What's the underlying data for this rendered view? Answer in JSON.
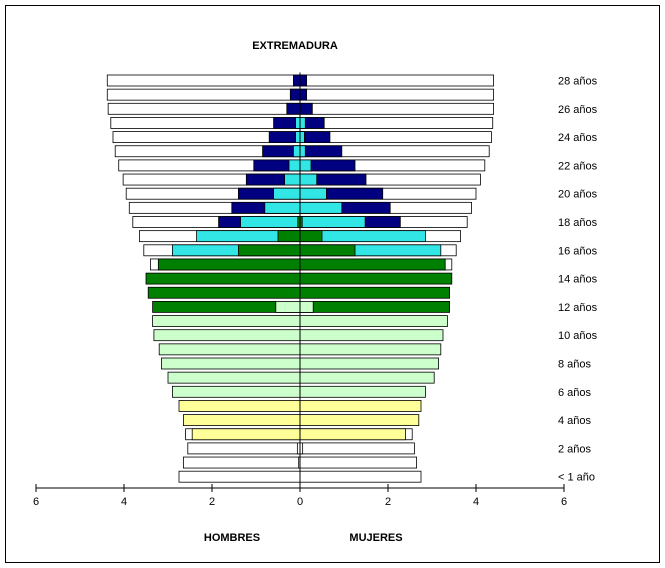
{
  "chart_data": {
    "type": "bar",
    "title": "EXTREMADURA",
    "xlabel_left": "HOMBRES",
    "xlabel_right": "MUJERES",
    "x_ticks": [
      "6",
      "4",
      "2",
      "0",
      "2",
      "4",
      "6"
    ],
    "xlim": [
      -6,
      6
    ],
    "colors": {
      "white": "#FFFFFF",
      "navy": "#000080",
      "cyan": "#33E6E6",
      "darkgreen": "#008000",
      "lightgreen": "#CCFFCC",
      "yellow": "#FFFF99",
      "outline": "#000000"
    },
    "y_labels": [
      {
        "age": 28,
        "label": "28 años"
      },
      {
        "age": 26,
        "label": "26 años"
      },
      {
        "age": 24,
        "label": "24 años"
      },
      {
        "age": 22,
        "label": "22 años"
      },
      {
        "age": 20,
        "label": "20 años"
      },
      {
        "age": 18,
        "label": "18 años"
      },
      {
        "age": 16,
        "label": "16 años"
      },
      {
        "age": 14,
        "label": "14 años"
      },
      {
        "age": 12,
        "label": "12 años"
      },
      {
        "age": 10,
        "label": "10 años"
      },
      {
        "age": 8,
        "label": "8 años"
      },
      {
        "age": 6,
        "label": "6 años"
      },
      {
        "age": 4,
        "label": "4 años"
      },
      {
        "age": 2,
        "label": "2 años"
      },
      {
        "age": 0,
        "label": "< 1 año"
      }
    ],
    "rows": [
      {
        "age": 28,
        "men": [
          {
            "v": 4.38,
            "c": "white"
          },
          {
            "v": 0.15,
            "c": "navy"
          }
        ],
        "women": [
          {
            "v": 4.4,
            "c": "white"
          },
          {
            "v": 0.15,
            "c": "navy"
          }
        ]
      },
      {
        "age": 27,
        "men": [
          {
            "v": 4.38,
            "c": "white"
          },
          {
            "v": 0.22,
            "c": "navy"
          }
        ],
        "women": [
          {
            "v": 4.4,
            "c": "white"
          },
          {
            "v": 0.15,
            "c": "navy"
          }
        ]
      },
      {
        "age": 26,
        "men": [
          {
            "v": 4.36,
            "c": "white"
          },
          {
            "v": 0.3,
            "c": "navy"
          }
        ],
        "women": [
          {
            "v": 4.4,
            "c": "white"
          },
          {
            "v": 0.28,
            "c": "navy"
          }
        ]
      },
      {
        "age": 25,
        "men": [
          {
            "v": 4.3,
            "c": "white"
          },
          {
            "v": 0.6,
            "c": "navy"
          },
          {
            "v": 0.1,
            "c": "cyan"
          }
        ],
        "women": [
          {
            "v": 4.38,
            "c": "white"
          },
          {
            "v": 0.55,
            "c": "navy"
          },
          {
            "v": 0.12,
            "c": "cyan"
          }
        ]
      },
      {
        "age": 24,
        "men": [
          {
            "v": 4.25,
            "c": "white"
          },
          {
            "v": 0.7,
            "c": "navy"
          },
          {
            "v": 0.1,
            "c": "cyan"
          }
        ],
        "women": [
          {
            "v": 4.35,
            "c": "white"
          },
          {
            "v": 0.68,
            "c": "navy"
          },
          {
            "v": 0.1,
            "c": "cyan"
          }
        ]
      },
      {
        "age": 23,
        "men": [
          {
            "v": 4.2,
            "c": "white"
          },
          {
            "v": 0.85,
            "c": "navy"
          },
          {
            "v": 0.15,
            "c": "cyan"
          }
        ],
        "women": [
          {
            "v": 4.3,
            "c": "white"
          },
          {
            "v": 0.95,
            "c": "navy"
          },
          {
            "v": 0.12,
            "c": "cyan"
          }
        ]
      },
      {
        "age": 22,
        "men": [
          {
            "v": 4.12,
            "c": "white"
          },
          {
            "v": 1.05,
            "c": "navy"
          },
          {
            "v": 0.25,
            "c": "cyan"
          }
        ],
        "women": [
          {
            "v": 4.2,
            "c": "white"
          },
          {
            "v": 1.25,
            "c": "navy"
          },
          {
            "v": 0.25,
            "c": "cyan"
          }
        ]
      },
      {
        "age": 21,
        "men": [
          {
            "v": 4.02,
            "c": "white"
          },
          {
            "v": 1.22,
            "c": "navy"
          },
          {
            "v": 0.35,
            "c": "cyan"
          }
        ],
        "women": [
          {
            "v": 4.1,
            "c": "white"
          },
          {
            "v": 1.5,
            "c": "navy"
          },
          {
            "v": 0.38,
            "c": "cyan"
          }
        ]
      },
      {
        "age": 20,
        "men": [
          {
            "v": 3.95,
            "c": "white"
          },
          {
            "v": 1.4,
            "c": "navy"
          },
          {
            "v": 0.6,
            "c": "cyan"
          }
        ],
        "women": [
          {
            "v": 4.0,
            "c": "white"
          },
          {
            "v": 1.88,
            "c": "navy"
          },
          {
            "v": 0.6,
            "c": "cyan"
          }
        ]
      },
      {
        "age": 19,
        "men": [
          {
            "v": 3.88,
            "c": "white"
          },
          {
            "v": 1.55,
            "c": "navy"
          },
          {
            "v": 0.8,
            "c": "cyan"
          }
        ],
        "women": [
          {
            "v": 3.9,
            "c": "white"
          },
          {
            "v": 2.05,
            "c": "navy"
          },
          {
            "v": 0.95,
            "c": "cyan"
          }
        ]
      },
      {
        "age": 18,
        "men": [
          {
            "v": 3.8,
            "c": "white"
          },
          {
            "v": 1.85,
            "c": "navy"
          },
          {
            "v": 1.35,
            "c": "cyan"
          },
          {
            "v": 0.05,
            "c": "darkgreen"
          }
        ],
        "women": [
          {
            "v": 3.8,
            "c": "white"
          },
          {
            "v": 2.28,
            "c": "navy"
          },
          {
            "v": 1.48,
            "c": "cyan"
          },
          {
            "v": 0.05,
            "c": "darkgreen"
          }
        ]
      },
      {
        "age": 17,
        "men": [
          {
            "v": 3.65,
            "c": "white"
          },
          {
            "v": 2.35,
            "c": "cyan"
          },
          {
            "v": 0.5,
            "c": "darkgreen"
          }
        ],
        "women": [
          {
            "v": 3.65,
            "c": "white"
          },
          {
            "v": 2.85,
            "c": "cyan"
          },
          {
            "v": 0.5,
            "c": "darkgreen"
          }
        ]
      },
      {
        "age": 16,
        "men": [
          {
            "v": 3.55,
            "c": "white"
          },
          {
            "v": 2.9,
            "c": "cyan"
          },
          {
            "v": 1.4,
            "c": "darkgreen"
          }
        ],
        "women": [
          {
            "v": 3.55,
            "c": "white"
          },
          {
            "v": 3.2,
            "c": "cyan"
          },
          {
            "v": 1.25,
            "c": "darkgreen"
          }
        ]
      },
      {
        "age": 15,
        "men": [
          {
            "v": 3.4,
            "c": "white"
          },
          {
            "v": 3.22,
            "c": "darkgreen"
          }
        ],
        "women": [
          {
            "v": 3.45,
            "c": "white"
          },
          {
            "v": 3.3,
            "c": "darkgreen"
          }
        ]
      },
      {
        "age": 14,
        "men": [
          {
            "v": 3.5,
            "c": "darkgreen"
          }
        ],
        "women": [
          {
            "v": 3.45,
            "c": "darkgreen"
          }
        ]
      },
      {
        "age": 13,
        "men": [
          {
            "v": 3.45,
            "c": "darkgreen"
          }
        ],
        "women": [
          {
            "v": 3.4,
            "c": "darkgreen"
          }
        ]
      },
      {
        "age": 12,
        "men": [
          {
            "v": 3.35,
            "c": "darkgreen"
          },
          {
            "v": 0.55,
            "c": "lightgreen"
          }
        ],
        "women": [
          {
            "v": 3.4,
            "c": "darkgreen"
          },
          {
            "v": 0.3,
            "c": "lightgreen"
          }
        ]
      },
      {
        "age": 11,
        "men": [
          {
            "v": 3.35,
            "c": "lightgreen"
          }
        ],
        "women": [
          {
            "v": 3.35,
            "c": "lightgreen"
          }
        ]
      },
      {
        "age": 10,
        "men": [
          {
            "v": 3.32,
            "c": "lightgreen"
          }
        ],
        "women": [
          {
            "v": 3.25,
            "c": "lightgreen"
          }
        ]
      },
      {
        "age": 9,
        "men": [
          {
            "v": 3.2,
            "c": "lightgreen"
          }
        ],
        "women": [
          {
            "v": 3.2,
            "c": "lightgreen"
          }
        ]
      },
      {
        "age": 8,
        "men": [
          {
            "v": 3.15,
            "c": "lightgreen"
          }
        ],
        "women": [
          {
            "v": 3.15,
            "c": "lightgreen"
          }
        ]
      },
      {
        "age": 7,
        "men": [
          {
            "v": 3.0,
            "c": "lightgreen"
          }
        ],
        "women": [
          {
            "v": 3.05,
            "c": "lightgreen"
          }
        ]
      },
      {
        "age": 6,
        "men": [
          {
            "v": 2.9,
            "c": "lightgreen"
          }
        ],
        "women": [
          {
            "v": 2.85,
            "c": "lightgreen"
          }
        ]
      },
      {
        "age": 5,
        "men": [
          {
            "v": 2.75,
            "c": "yellow"
          }
        ],
        "women": [
          {
            "v": 2.75,
            "c": "yellow"
          }
        ]
      },
      {
        "age": 4,
        "men": [
          {
            "v": 2.65,
            "c": "yellow"
          }
        ],
        "women": [
          {
            "v": 2.7,
            "c": "yellow"
          }
        ]
      },
      {
        "age": 3,
        "men": [
          {
            "v": 2.6,
            "c": "white"
          },
          {
            "v": 2.45,
            "c": "yellow"
          }
        ],
        "women": [
          {
            "v": 2.55,
            "c": "white"
          },
          {
            "v": 2.4,
            "c": "yellow"
          }
        ]
      },
      {
        "age": 2,
        "men": [
          {
            "v": 2.55,
            "c": "white"
          },
          {
            "v": 0.06,
            "c": "white"
          }
        ],
        "women": [
          {
            "v": 2.6,
            "c": "white"
          },
          {
            "v": 0.06,
            "c": "white"
          }
        ]
      },
      {
        "age": 1,
        "men": [
          {
            "v": 2.65,
            "c": "white"
          },
          {
            "v": 0.03,
            "c": "white"
          }
        ],
        "women": [
          {
            "v": 2.65,
            "c": "white"
          }
        ]
      },
      {
        "age": 0,
        "men": [
          {
            "v": 2.75,
            "c": "white"
          }
        ],
        "women": [
          {
            "v": 2.75,
            "c": "white"
          }
        ]
      }
    ]
  }
}
